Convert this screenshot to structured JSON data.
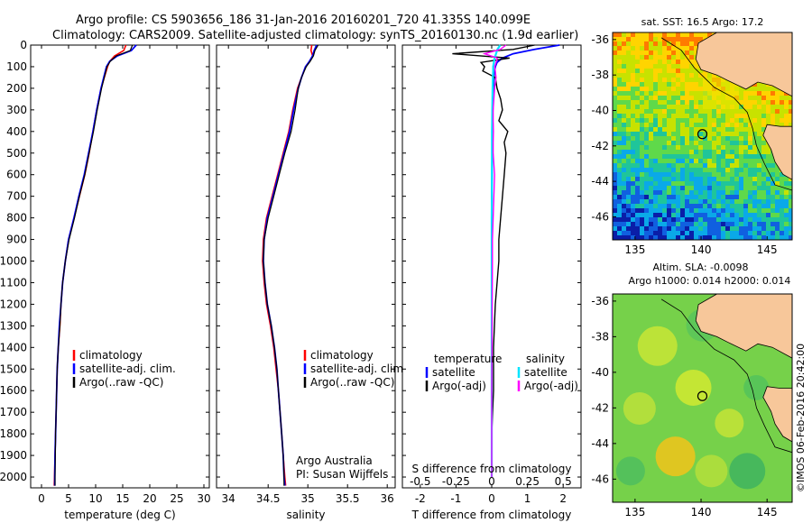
{
  "title": {
    "line1": "Argo profile: CS 5903656_186 31-Jan-2016 20160201_720 41.335S 140.099E",
    "line2": "Climatology: CARS2009. Satellite-adjusted climatology: synTS_20160130.nc (1.9d earlier)"
  },
  "colors": {
    "climatology": "#ff0000",
    "satellite": "#0000ff",
    "argo": "#000000",
    "salinity_satellite": "#00e5ff",
    "salinity_argo": "#ff00ff"
  },
  "depth_ticks": [
    0,
    100,
    200,
    300,
    400,
    500,
    600,
    700,
    800,
    900,
    1000,
    1100,
    1200,
    1300,
    1400,
    1500,
    1600,
    1700,
    1800,
    1900,
    2000
  ],
  "chart_data": [
    {
      "type": "line",
      "xlabel": "temperature (deg C)",
      "xlim": [
        -2,
        31
      ],
      "xticks": [
        "0",
        "5",
        "10",
        "15",
        "20",
        "25",
        "30"
      ],
      "ylim": [
        2050,
        0
      ],
      "y_inverted": true,
      "legend": [
        "climatology",
        "satellite-adj. clim.",
        "Argo(..raw -QC)"
      ],
      "legend_position": "lower-left",
      "depth": [
        0,
        25,
        50,
        75,
        100,
        150,
        200,
        300,
        400,
        500,
        600,
        700,
        800,
        900,
        1000,
        1100,
        1200,
        1300,
        1400,
        1500,
        1600,
        1700,
        1800,
        1900,
        2000,
        2040
      ],
      "series": [
        {
          "name": "climatology",
          "values": [
            15.6,
            15.2,
            13.5,
            12.6,
            12.2,
            11.6,
            11.0,
            10.2,
            9.5,
            8.8,
            8.0,
            7.0,
            6.0,
            5.0,
            4.4,
            3.9,
            3.6,
            3.4,
            3.1,
            2.9,
            2.8,
            2.7,
            2.6,
            2.5,
            2.4,
            2.35
          ]
        },
        {
          "name": "satellite-adj. clim.",
          "values": [
            17.5,
            16.6,
            14.0,
            12.6,
            12.0,
            11.5,
            11.0,
            10.2,
            9.5,
            8.7,
            7.9,
            6.9,
            6.0,
            5.0,
            4.4,
            3.9,
            3.6,
            3.3,
            3.1,
            2.9,
            2.8,
            2.7,
            2.6,
            2.5,
            2.45,
            2.45
          ]
        },
        {
          "name": "Argo(..raw -QC)",
          "values": [
            16.8,
            16.4,
            13.8,
            12.7,
            12.1,
            11.6,
            11.1,
            10.3,
            9.6,
            8.8,
            8.0,
            7.0,
            6.1,
            5.1,
            4.4,
            3.9,
            3.6,
            3.4,
            3.1,
            2.9,
            2.8,
            2.7,
            2.6,
            2.55,
            2.5,
            2.5
          ]
        }
      ]
    },
    {
      "type": "line",
      "xlabel": "salinity",
      "xlim": [
        33.85,
        36.1
      ],
      "xticks": [
        "34",
        "34.5",
        "35",
        "35.5",
        "36"
      ],
      "ylim": [
        2050,
        0
      ],
      "y_inverted": true,
      "legend": [
        "climatology",
        "satellite-adj. clim.",
        "Argo(..raw -QC)"
      ],
      "legend_position": "lower-right",
      "annotation": [
        "Argo Australia",
        "PI: Susan Wijffels"
      ],
      "depth": [
        0,
        25,
        50,
        75,
        100,
        150,
        200,
        300,
        400,
        500,
        600,
        700,
        800,
        900,
        1000,
        1100,
        1200,
        1300,
        1400,
        1500,
        1600,
        1700,
        1800,
        1900,
        2000,
        2040
      ],
      "series": [
        {
          "name": "climatology",
          "values": [
            35.05,
            35.04,
            35.06,
            35.02,
            34.97,
            34.92,
            34.87,
            34.81,
            34.76,
            34.69,
            34.62,
            34.55,
            34.48,
            34.44,
            34.43,
            34.45,
            34.48,
            34.53,
            34.57,
            34.6,
            34.63,
            34.65,
            34.67,
            34.69,
            34.71,
            34.72
          ]
        },
        {
          "name": "satellite-adj. clim.",
          "values": [
            35.11,
            35.08,
            35.06,
            35.02,
            34.97,
            34.92,
            34.88,
            34.82,
            34.77,
            34.7,
            34.63,
            34.56,
            34.49,
            34.45,
            34.44,
            34.46,
            34.49,
            34.54,
            34.58,
            34.61,
            34.63,
            34.65,
            34.67,
            34.69,
            34.7,
            34.71
          ]
        },
        {
          "name": "Argo(..raw -QC)",
          "values": [
            35.13,
            35.09,
            35.07,
            35.03,
            34.98,
            34.92,
            34.88,
            34.84,
            34.79,
            34.71,
            34.64,
            34.57,
            34.5,
            34.45,
            34.44,
            34.46,
            34.49,
            34.54,
            34.58,
            34.61,
            34.63,
            34.65,
            34.67,
            34.69,
            34.7,
            34.7
          ]
        }
      ]
    },
    {
      "type": "line",
      "xlabel": "T difference from climatology",
      "xlabel_top": "S difference from climatology",
      "xlim": [
        -2.5,
        2.5
      ],
      "xticks": [
        "-2",
        "-1",
        "0",
        "1",
        "2"
      ],
      "xticks_top": [
        "-0.5",
        "-0.25",
        "0",
        "0.25",
        "0.5"
      ],
      "ylim": [
        2050,
        0
      ],
      "y_inverted": true,
      "legend": [
        "temperature",
        "satellite",
        "Argo(-adj)",
        "salinity",
        "satellite",
        "Argo(-adj)"
      ],
      "legend_position": "lower-center",
      "depth": [
        0,
        20,
        40,
        60,
        80,
        100,
        120,
        150,
        200,
        250,
        300,
        350,
        400,
        450,
        500,
        600,
        700,
        800,
        900,
        1000,
        1200,
        1400,
        1600,
        1800,
        2000
      ],
      "series": [
        {
          "name": "temperature satellite",
          "values": [
            1.9,
            1.2,
            0.6,
            0.3,
            0.15,
            0.1,
            0.08,
            0.06,
            0.05,
            0.04,
            0.03,
            0.02,
            0.02,
            0.02,
            0.01,
            0.01,
            0.0,
            0.0,
            0.0,
            0.0,
            0.0,
            0.0,
            0.0,
            0.0,
            0.0
          ]
        },
        {
          "name": "temperature Argo(-adj)",
          "values": [
            1.2,
            0.6,
            -1.1,
            0.5,
            -0.3,
            -0.2,
            -0.25,
            0.1,
            0.15,
            0.25,
            0.3,
            0.2,
            0.45,
            0.35,
            0.4,
            0.35,
            0.3,
            0.25,
            0.2,
            0.2,
            0.1,
            0.05,
            0.05,
            0.0,
            0.0
          ]
        },
        {
          "name": "salinity satellite",
          "values": [
            0.06,
            0.04,
            0.03,
            0.02,
            0.015,
            0.01,
            0.01,
            0.008,
            0.006,
            0.005,
            0.004,
            0.003,
            0.002,
            0.002,
            0.002,
            0.001,
            0.001,
            0.0,
            0.0,
            0.0,
            0.0,
            0.0,
            0.0,
            0.0,
            0.0
          ]
        },
        {
          "name": "salinity Argo(-adj)",
          "values": [
            0.1,
            0.06,
            -0.05,
            0.04,
            0.03,
            0.02,
            0.025,
            0.03,
            0.02,
            0.015,
            0.01,
            0.01,
            0.012,
            0.01,
            0.01,
            0.02,
            0.015,
            0.01,
            0.005,
            0.005,
            0.003,
            0.002,
            0.0,
            0.0,
            0.0
          ]
        }
      ]
    },
    {
      "type": "heatmap",
      "title": "sat. SST: 16.5  Argo: 17.2",
      "xlim": [
        133.3,
        146.9
      ],
      "ylim": [
        -47.3,
        -35.6
      ],
      "xticks": [
        "135",
        "140",
        "145"
      ],
      "yticks": [
        "-36",
        "-38",
        "-40",
        "-42",
        "-44",
        "-46"
      ],
      "marker": {
        "lon": 140.099,
        "lat": -41.335
      }
    },
    {
      "type": "heatmap",
      "title": "Altim. SLA: -0.0098",
      "subtitle": "Argo h1000: 0.014 h2000: 0.014",
      "xlim": [
        133.3,
        146.9
      ],
      "ylim": [
        -47.3,
        -35.6
      ],
      "xticks": [
        "135",
        "140",
        "145"
      ],
      "yticks": [
        "-36",
        "-38",
        "-40",
        "-42",
        "-44",
        "-46"
      ],
      "marker": {
        "lon": 140.099,
        "lat": -41.335
      }
    }
  ],
  "credit": "©IMOS 06-Feb-2016 20:42:00"
}
